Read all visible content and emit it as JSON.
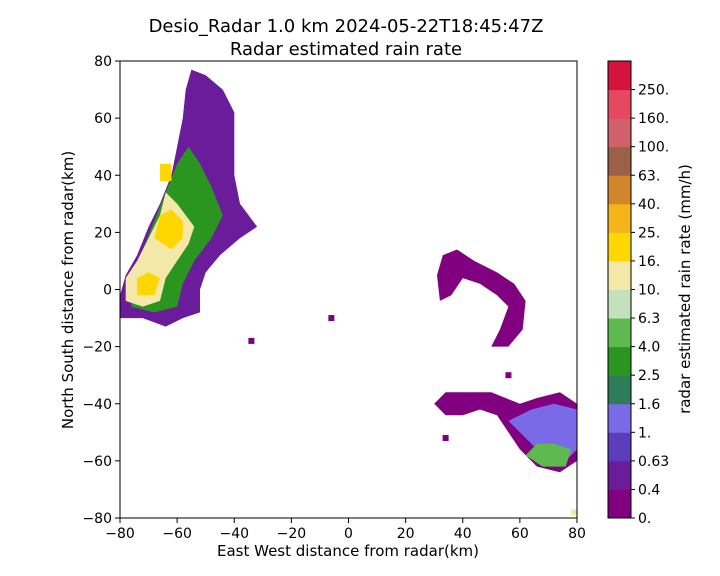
{
  "chart_data": {
    "type": "heatmap",
    "title": "Desio_Radar 1.0 km 2024-05-22T18:45:47Z",
    "subtitle": "Radar estimated rain rate",
    "xlabel": "East West distance from radar(km)",
    "ylabel": "North South distance from radar(km)",
    "xlim": [
      -80,
      80
    ],
    "ylim": [
      -80,
      80
    ],
    "xticks": [
      "−80",
      "−60",
      "−40",
      "−20",
      "0",
      "20",
      "40",
      "60",
      "80"
    ],
    "yticks": [
      "80",
      "60",
      "40",
      "20",
      "0",
      "−20",
      "−40",
      "−60",
      "−80"
    ],
    "grid": false,
    "colorbar": {
      "label": "radar estimated rain rate (mm/h)",
      "ticks": [
        "0.",
        "0.4",
        "0.63",
        "1.",
        "1.6",
        "2.5",
        "4.0",
        "6.3",
        "10.",
        "16.",
        "25.",
        "40.",
        "63.",
        "100.",
        "160.",
        "250."
      ],
      "colors": [
        "#800080",
        "#6a1c9a",
        "#5a3cbc",
        "#7a6ae8",
        "#2e7d5a",
        "#2a9620",
        "#5cba4e",
        "#c4e0bc",
        "#f4e8a8",
        "#ffd700",
        "#f4b41a",
        "#d2862a",
        "#9a6048",
        "#d0606a",
        "#e64860",
        "#d4143c"
      ]
    },
    "levels_legend": [
      "0–0.4",
      "0.4–0.63",
      "0.63–1",
      "1–1.6",
      "1.6–2.5",
      "2.5–4",
      "4–6.3",
      "6.3–10",
      "10–16",
      "16–25"
    ],
    "regions": [
      {
        "name": "northwest-band",
        "polygon": [
          [
            -80,
            -10
          ],
          [
            -80,
            -2
          ],
          [
            -78,
            5
          ],
          [
            -74,
            12
          ],
          [
            -70,
            22
          ],
          [
            -66,
            30
          ],
          [
            -62,
            40
          ],
          [
            -60,
            50
          ],
          [
            -58,
            60
          ],
          [
            -57,
            70
          ],
          [
            -55,
            77
          ],
          [
            -50,
            75
          ],
          [
            -44,
            70
          ],
          [
            -40,
            62
          ],
          [
            -40,
            50
          ],
          [
            -40,
            40
          ],
          [
            -38,
            30
          ],
          [
            -32,
            22
          ],
          [
            -38,
            18
          ],
          [
            -45,
            12
          ],
          [
            -50,
            6
          ],
          [
            -52,
            0
          ],
          [
            -52,
            -8
          ],
          [
            -58,
            -10
          ],
          [
            -64,
            -13
          ],
          [
            -72,
            -10
          ]
        ],
        "level": 1
      },
      {
        "name": "northwest-core-mid",
        "polygon": [
          [
            -76,
            -6
          ],
          [
            -76,
            4
          ],
          [
            -72,
            14
          ],
          [
            -68,
            24
          ],
          [
            -64,
            34
          ],
          [
            -60,
            44
          ],
          [
            -56,
            50
          ],
          [
            -52,
            44
          ],
          [
            -48,
            36
          ],
          [
            -44,
            26
          ],
          [
            -48,
            18
          ],
          [
            -54,
            10
          ],
          [
            -58,
            2
          ],
          [
            -60,
            -6
          ],
          [
            -68,
            -8
          ]
        ],
        "level": 5
      },
      {
        "name": "northwest-core-strong",
        "polygon": [
          [
            -78,
            -4
          ],
          [
            -78,
            4
          ],
          [
            -74,
            10
          ],
          [
            -70,
            18
          ],
          [
            -66,
            26
          ],
          [
            -64,
            34
          ],
          [
            -60,
            30
          ],
          [
            -54,
            22
          ],
          [
            -56,
            16
          ],
          [
            -60,
            10
          ],
          [
            -64,
            4
          ],
          [
            -66,
            -4
          ],
          [
            -72,
            -6
          ]
        ],
        "level": 8
      },
      {
        "name": "northwest-core-peak",
        "polygon": [
          [
            -68,
            18
          ],
          [
            -66,
            26
          ],
          [
            -62,
            28
          ],
          [
            -58,
            24
          ],
          [
            -58,
            18
          ],
          [
            -62,
            14
          ]
        ],
        "level": 9
      },
      {
        "name": "northwest-core-peak-2",
        "polygon": [
          [
            -74,
            -2
          ],
          [
            -74,
            4
          ],
          [
            -70,
            6
          ],
          [
            -66,
            4
          ],
          [
            -68,
            -2
          ]
        ],
        "level": 9
      },
      {
        "name": "northwest-core-peak-3",
        "polygon": [
          [
            -66,
            38
          ],
          [
            -66,
            44
          ],
          [
            -62,
            44
          ],
          [
            -62,
            38
          ]
        ],
        "level": 9
      },
      {
        "name": "east-arc-upper",
        "polygon": [
          [
            31,
            5
          ],
          [
            33,
            12
          ],
          [
            38,
            14
          ],
          [
            44,
            10
          ],
          [
            52,
            6
          ],
          [
            58,
            2
          ],
          [
            62,
            -4
          ],
          [
            61,
            -14
          ],
          [
            56,
            -20
          ],
          [
            50,
            -20
          ],
          [
            53,
            -14
          ],
          [
            56,
            -6
          ],
          [
            52,
            -2
          ],
          [
            46,
            2
          ],
          [
            40,
            4
          ],
          [
            36,
            -2
          ],
          [
            32,
            -4
          ]
        ],
        "level": 0
      },
      {
        "name": "east-southeast-band",
        "polygon": [
          [
            30,
            -40
          ],
          [
            34,
            -44
          ],
          [
            40,
            -44
          ],
          [
            46,
            -42
          ],
          [
            52,
            -44
          ],
          [
            56,
            -50
          ],
          [
            60,
            -56
          ],
          [
            66,
            -62
          ],
          [
            74,
            -64
          ],
          [
            80,
            -60
          ],
          [
            80,
            -40
          ],
          [
            74,
            -36
          ],
          [
            66,
            -38
          ],
          [
            60,
            -40
          ],
          [
            50,
            -36
          ],
          [
            42,
            -36
          ],
          [
            34,
            -36
          ]
        ],
        "level": 0
      },
      {
        "name": "east-southeast-mid",
        "polygon": [
          [
            56,
            -46
          ],
          [
            62,
            -52
          ],
          [
            68,
            -58
          ],
          [
            76,
            -60
          ],
          [
            80,
            -56
          ],
          [
            80,
            -42
          ],
          [
            72,
            -40
          ],
          [
            64,
            -42
          ]
        ],
        "level": 3
      },
      {
        "name": "east-southeast-green",
        "polygon": [
          [
            62,
            -58
          ],
          [
            68,
            -62
          ],
          [
            76,
            -62
          ],
          [
            78,
            -56
          ],
          [
            72,
            -54
          ],
          [
            66,
            -54
          ]
        ],
        "level": 6
      }
    ],
    "points": [
      {
        "x": -6,
        "y": -10,
        "level": 0
      },
      {
        "x": -34,
        "y": -18,
        "level": 0
      },
      {
        "x": 56,
        "y": -30,
        "level": 0
      },
      {
        "x": 34,
        "y": -52,
        "level": 0
      },
      {
        "x": 79,
        "y": -78,
        "level": 8
      }
    ]
  }
}
